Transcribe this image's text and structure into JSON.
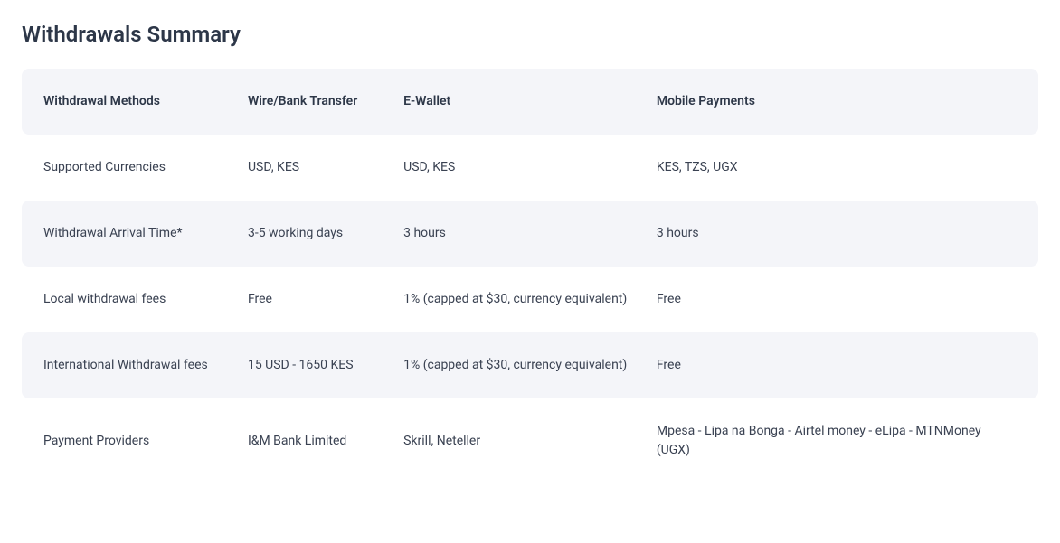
{
  "title": "Withdrawals Summary",
  "table": {
    "headers": {
      "col1": "Withdrawal Methods",
      "col2": "Wire/Bank Transfer",
      "col3": "E-Wallet",
      "col4": "Mobile Payments"
    },
    "rows": [
      {
        "label": "Supported Currencies",
        "wire": "USD, KES",
        "ewallet": "USD, KES",
        "mobile": "KES, TZS, UGX"
      },
      {
        "label": "Withdrawal Arrival Time*",
        "wire": "3-5 working days",
        "ewallet": "3 hours",
        "mobile": "3 hours"
      },
      {
        "label": "Local withdrawal fees",
        "wire": "Free",
        "ewallet": "1% (capped at $30, currency equivalent)",
        "mobile": "Free"
      },
      {
        "label": "International Withdrawal fees",
        "wire": "15 USD - 1650 KES",
        "ewallet": "1% (capped at $30, currency equivalent)",
        "mobile": "Free"
      },
      {
        "label": "Payment Providers",
        "wire": "I&M Bank Limited",
        "ewallet": "Skrill, Neteller",
        "mobile": "Mpesa - Lipa na Bonga - Airtel money - eLipa - MTNMoney (UGX)"
      }
    ]
  },
  "styling": {
    "background_color": "#ffffff",
    "stripe_color": "#f4f5f9",
    "text_color": "#3a4252",
    "header_text_color": "#2d3748",
    "title_fontsize": 24,
    "cell_fontsize": 14,
    "border_radius": 8,
    "column_widths_pct": [
      21,
      16,
      26,
      37
    ]
  }
}
